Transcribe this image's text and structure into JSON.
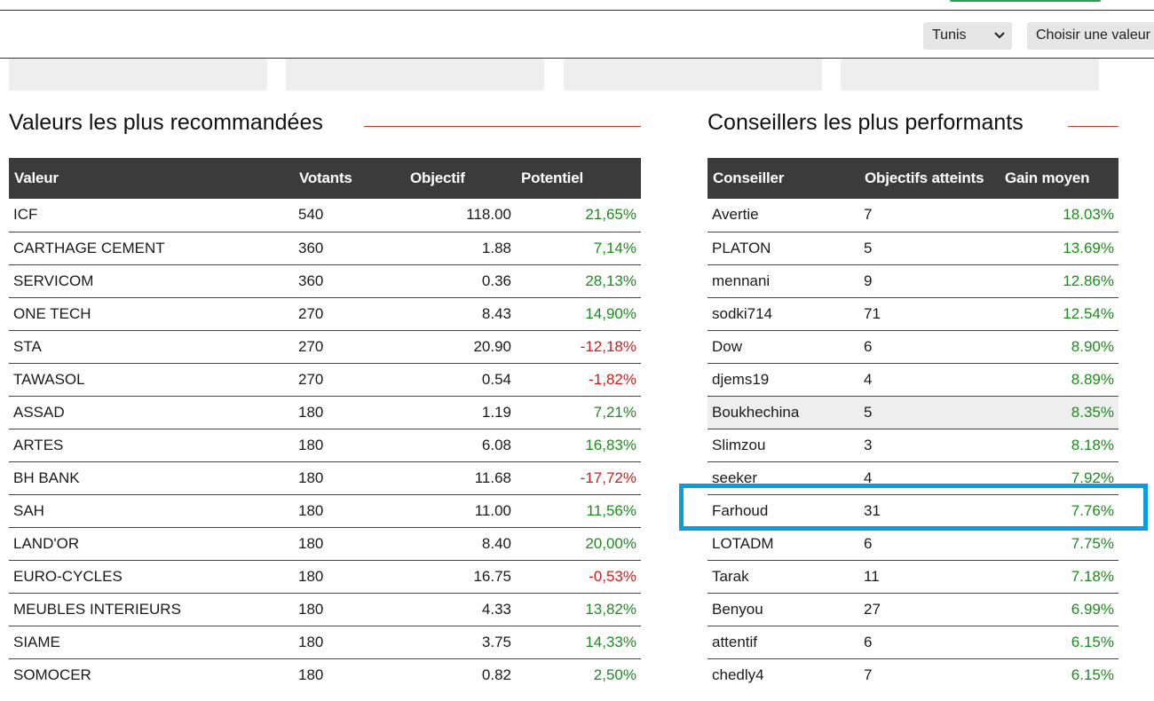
{
  "toolbar": {
    "market_select": "Tunis",
    "choose_value": "Choisir une valeur"
  },
  "sections": {
    "recommended_title": "Valeurs les plus recommandées",
    "advisors_title": "Conseillers les plus performants"
  },
  "recommended": {
    "headers": [
      "Valeur",
      "Votants",
      "Objectif",
      "Potentiel"
    ],
    "rows": [
      {
        "valeur": "ICF",
        "votants": "540",
        "objectif": "118.00",
        "potentiel": "21,65%",
        "trend": "pos"
      },
      {
        "valeur": "CARTHAGE CEMENT",
        "votants": "360",
        "objectif": "1.88",
        "potentiel": "7,14%",
        "trend": "pos"
      },
      {
        "valeur": "SERVICOM",
        "votants": "360",
        "objectif": "0.36",
        "potentiel": "28,13%",
        "trend": "pos"
      },
      {
        "valeur": "ONE TECH",
        "votants": "270",
        "objectif": "8.43",
        "potentiel": "14,90%",
        "trend": "pos"
      },
      {
        "valeur": "STA",
        "votants": "270",
        "objectif": "20.90",
        "potentiel": "-12,18%",
        "trend": "neg"
      },
      {
        "valeur": "TAWASOL",
        "votants": "270",
        "objectif": "0.54",
        "potentiel": "-1,82%",
        "trend": "neg"
      },
      {
        "valeur": "ASSAD",
        "votants": "180",
        "objectif": "1.19",
        "potentiel": "7,21%",
        "trend": "pos"
      },
      {
        "valeur": "ARTES",
        "votants": "180",
        "objectif": "6.08",
        "potentiel": "16,83%",
        "trend": "pos"
      },
      {
        "valeur": "BH BANK",
        "votants": "180",
        "objectif": "11.68",
        "potentiel": "-17,72%",
        "trend": "neg"
      },
      {
        "valeur": "SAH",
        "votants": "180",
        "objectif": "11.00",
        "potentiel": "11,56%",
        "trend": "pos"
      },
      {
        "valeur": "LAND'OR",
        "votants": "180",
        "objectif": "8.40",
        "potentiel": "20,00%",
        "trend": "pos"
      },
      {
        "valeur": "EURO-CYCLES",
        "votants": "180",
        "objectif": "16.75",
        "potentiel": "-0,53%",
        "trend": "neg"
      },
      {
        "valeur": "MEUBLES INTERIEURS",
        "votants": "180",
        "objectif": "4.33",
        "potentiel": "13,82%",
        "trend": "pos"
      },
      {
        "valeur": "SIAME",
        "votants": "180",
        "objectif": "3.75",
        "potentiel": "14,33%",
        "trend": "pos"
      },
      {
        "valeur": "SOMOCER",
        "votants": "180",
        "objectif": "0.82",
        "potentiel": "2,50%",
        "trend": "pos"
      }
    ]
  },
  "advisors": {
    "headers": [
      "Conseiller",
      "Objectifs atteints",
      "Gain moyen"
    ],
    "rows": [
      {
        "conseiller": "Avertie",
        "objectifs": "7",
        "gain": "18.03%"
      },
      {
        "conseiller": "PLATON",
        "objectifs": "5",
        "gain": "13.69%"
      },
      {
        "conseiller": "mennani",
        "objectifs": "9",
        "gain": "12.86%"
      },
      {
        "conseiller": "sodki714",
        "objectifs": "71",
        "gain": "12.54%"
      },
      {
        "conseiller": "Dow",
        "objectifs": "6",
        "gain": "8.90%"
      },
      {
        "conseiller": "djems19",
        "objectifs": "4",
        "gain": "8.89%"
      },
      {
        "conseiller": "Boukhechina",
        "objectifs": "5",
        "gain": "8.35%",
        "hovered": true
      },
      {
        "conseiller": "Slimzou",
        "objectifs": "3",
        "gain": "8.18%"
      },
      {
        "conseiller": "seeker",
        "objectifs": "4",
        "gain": "7.92%"
      },
      {
        "conseiller": "Farhoud",
        "objectifs": "31",
        "gain": "7.76%",
        "highlighted": true
      },
      {
        "conseiller": "LOTADM",
        "objectifs": "6",
        "gain": "7.75%"
      },
      {
        "conseiller": "Tarak",
        "objectifs": "11",
        "gain": "7.18%"
      },
      {
        "conseiller": "Benyou",
        "objectifs": "27",
        "gain": "6.99%"
      },
      {
        "conseiller": "attentif",
        "objectifs": "6",
        "gain": "6.15%"
      },
      {
        "conseiller": "chedly4",
        "objectifs": "7",
        "gain": "6.15%"
      }
    ]
  },
  "colors": {
    "positive": "#1e8a1e",
    "negative": "#d01c1c",
    "header_bg": "#3b3b3b",
    "title_rule": "#c0392b",
    "highlight_box": "#0a9ce0"
  }
}
